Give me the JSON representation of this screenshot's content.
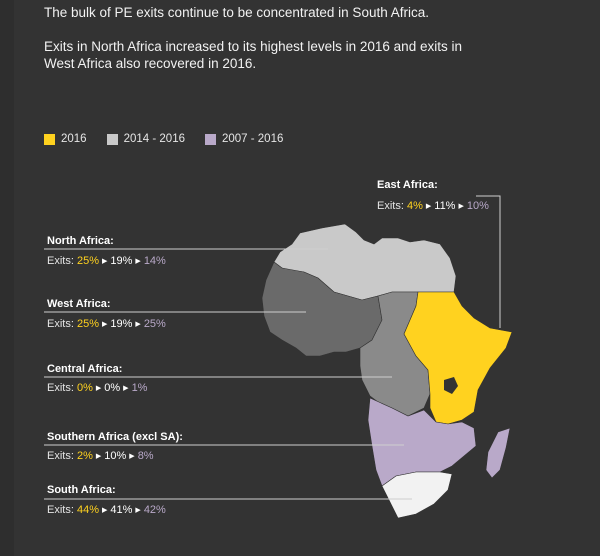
{
  "intro": {
    "line1": "The bulk of PE exits continue to be concentrated in South Africa.",
    "line2": "Exits in North Africa increased to its highest levels in 2016 and exits in",
    "line3": "West Africa also recovered in 2016."
  },
  "legend": [
    {
      "label": "2016",
      "color": "#ffd21f"
    },
    {
      "label": "2014 - 2016",
      "color": "#c9c9c9"
    },
    {
      "label": "2007 - 2016",
      "color": "#b9a9c9"
    }
  ],
  "regions": {
    "east": {
      "title": "East Africa:",
      "prefix": "Exits:",
      "v2016": "4%",
      "v1416": "11%",
      "v0716": "10%",
      "fill": "#ffd21f"
    },
    "north": {
      "title": "North Africa:",
      "prefix": "Exits:",
      "v2016": "25%",
      "v1416": "19%",
      "v0716": "14%",
      "fill": "#c9c9c9"
    },
    "west": {
      "title": "West Africa:",
      "prefix": "Exits:",
      "v2016": "25%",
      "v1416": "19%",
      "v0716": "25%",
      "fill": "#6a6a6a"
    },
    "central": {
      "title": "Central Africa:",
      "prefix": "Exits:",
      "v2016": "0%",
      "v1416": "0%",
      "v0716": "1%",
      "fill": "#8a8a8a"
    },
    "southern": {
      "title": "Southern Africa (excl SA):",
      "prefix": "Exits:",
      "v2016": "2%",
      "v1416": "10%",
      "v0716": "8%",
      "fill": "#b9a9c9"
    },
    "south": {
      "title": "South Africa:",
      "prefix": "Exits:",
      "v2016": "44%",
      "v1416": "41%",
      "v0716": "42%",
      "fill": "#f2f2f2"
    }
  }
}
